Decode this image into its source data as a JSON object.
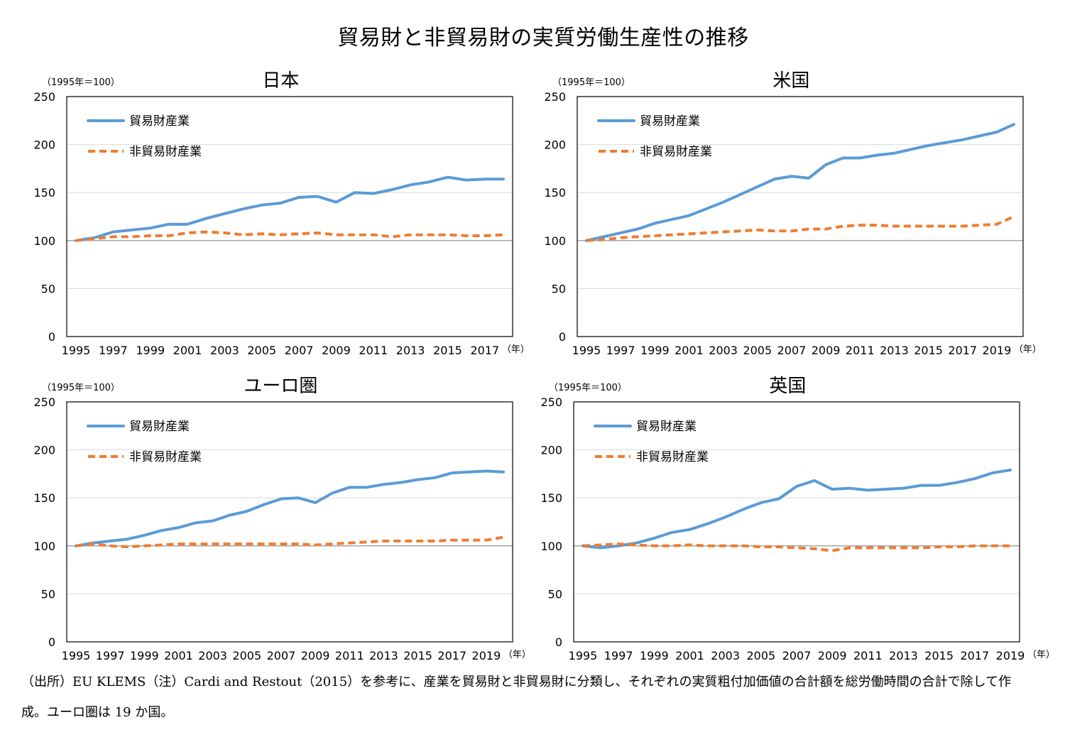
{
  "title": "貿易財と非貿易財の実質労働生産性の推移",
  "notes": {
    "line1": "（出所）EU KLEMS（注）Cardi and Restout（2015）を参考に、産業を貿易財と非貿易財に分類し、それぞれの実質粗付加価値の合計額を総労働時間の合計で除して作",
    "line2": "成。ユーロ圏は 19 か国。"
  },
  "colors": {
    "traded": "#5B9BD5",
    "nontraded": "#ED7D31",
    "frame": "#000000",
    "grid": "#D9D9D9",
    "baseline": "#A6A6A6"
  },
  "chart_data": [
    {
      "type": "line",
      "title": "日本",
      "unit_label": "（1995年＝100）",
      "x_unit_label": "（年）",
      "ylim": [
        0,
        250
      ],
      "yticks": [
        0,
        50,
        100,
        150,
        200,
        250
      ],
      "xlim": [
        1995,
        2018
      ],
      "xticks": [
        "1995",
        "1997",
        "1999",
        "2001",
        "2003",
        "2005",
        "2007",
        "2009",
        "2011",
        "2013",
        "2015",
        "2017"
      ],
      "grid": true,
      "legend": "top-left",
      "x": [
        1995,
        1996,
        1997,
        1998,
        1999,
        2000,
        2001,
        2002,
        2003,
        2004,
        2005,
        2006,
        2007,
        2008,
        2009,
        2010,
        2011,
        2012,
        2013,
        2014,
        2015,
        2016,
        2017,
        2018
      ],
      "series": [
        {
          "name": "貿易財産業",
          "style": "solid",
          "values": [
            100,
            103,
            109,
            111,
            113,
            117,
            117,
            123,
            128,
            133,
            137,
            139,
            145,
            146,
            140,
            150,
            149,
            153,
            158,
            161,
            166,
            163,
            164,
            164
          ]
        },
        {
          "name": "非貿易財産業",
          "style": "dashed",
          "values": [
            100,
            102,
            104,
            104,
            105,
            105,
            108,
            109,
            108,
            106,
            107,
            106,
            107,
            108,
            106,
            106,
            106,
            104,
            106,
            106,
            106,
            105,
            105,
            106
          ]
        }
      ]
    },
    {
      "type": "line",
      "title": "米国",
      "unit_label": "（1995年＝100）",
      "x_unit_label": "（年）",
      "ylim": [
        0,
        250
      ],
      "yticks": [
        0,
        50,
        100,
        150,
        200,
        250
      ],
      "xlim": [
        1995,
        2020
      ],
      "xticks": [
        "1995",
        "1997",
        "1999",
        "2001",
        "2003",
        "2005",
        "2007",
        "2009",
        "2011",
        "2013",
        "2015",
        "2017",
        "2019"
      ],
      "grid": true,
      "legend": "top-left",
      "x": [
        1995,
        1996,
        1997,
        1998,
        1999,
        2000,
        2001,
        2002,
        2003,
        2004,
        2005,
        2006,
        2007,
        2008,
        2009,
        2010,
        2011,
        2012,
        2013,
        2014,
        2015,
        2016,
        2017,
        2018,
        2019,
        2020
      ],
      "series": [
        {
          "name": "貿易財産業",
          "style": "solid",
          "values": [
            100,
            104,
            108,
            112,
            118,
            122,
            126,
            133,
            140,
            148,
            156,
            164,
            167,
            165,
            179,
            186,
            186,
            189,
            191,
            195,
            199,
            202,
            205,
            209,
            213,
            221
          ]
        },
        {
          "name": "非貿易財産業",
          "style": "dashed",
          "values": [
            100,
            101,
            103,
            104,
            105,
            106,
            107,
            108,
            109,
            110,
            111,
            110,
            110,
            112,
            112,
            115,
            116,
            116,
            115,
            115,
            115,
            115,
            115,
            116,
            117,
            125
          ]
        }
      ]
    },
    {
      "type": "line",
      "title": "ユーロ圏",
      "unit_label": "（1995年＝100）",
      "x_unit_label": "（年）",
      "ylim": [
        0,
        250
      ],
      "yticks": [
        0,
        50,
        100,
        150,
        200,
        250
      ],
      "xlim": [
        1995,
        2020
      ],
      "xticks": [
        "1995",
        "1997",
        "1999",
        "2001",
        "2003",
        "2005",
        "2007",
        "2009",
        "2011",
        "2013",
        "2015",
        "2017",
        "2019"
      ],
      "grid": true,
      "legend": "top-left",
      "x": [
        1995,
        1996,
        1997,
        1998,
        1999,
        2000,
        2001,
        2002,
        2003,
        2004,
        2005,
        2006,
        2007,
        2008,
        2009,
        2010,
        2011,
        2012,
        2013,
        2014,
        2015,
        2016,
        2017,
        2018,
        2019,
        2020
      ],
      "series": [
        {
          "name": "貿易財産業",
          "style": "solid",
          "values": [
            100,
            103,
            105,
            107,
            111,
            116,
            119,
            124,
            126,
            132,
            136,
            143,
            149,
            150,
            145,
            155,
            161,
            161,
            164,
            166,
            169,
            171,
            176,
            177,
            178,
            177
          ]
        },
        {
          "name": "非貿易財産業",
          "style": "dashed",
          "values": [
            100,
            102,
            100,
            99,
            100,
            101,
            102,
            102,
            102,
            102,
            102,
            102,
            102,
            102,
            101,
            102,
            103,
            104,
            105,
            105,
            105,
            105,
            106,
            106,
            106,
            109
          ]
        }
      ]
    },
    {
      "type": "line",
      "title": "英国",
      "unit_label": "（1995年＝100）",
      "x_unit_label": "（年）",
      "ylim": [
        0,
        250
      ],
      "yticks": [
        0,
        50,
        100,
        150,
        200,
        250
      ],
      "xlim": [
        1995,
        2019
      ],
      "xticks": [
        "1995",
        "1997",
        "1999",
        "2001",
        "2003",
        "2005",
        "2007",
        "2009",
        "2011",
        "2013",
        "2015",
        "2017",
        "2019"
      ],
      "grid": true,
      "legend": "top-left",
      "x": [
        1995,
        1996,
        1997,
        1998,
        1999,
        2000,
        2001,
        2002,
        2003,
        2004,
        2005,
        2006,
        2007,
        2008,
        2009,
        2010,
        2011,
        2012,
        2013,
        2014,
        2015,
        2016,
        2017,
        2018,
        2019
      ],
      "series": [
        {
          "name": "貿易財産業",
          "style": "solid",
          "values": [
            100,
            98,
            100,
            103,
            108,
            114,
            117,
            123,
            130,
            138,
            145,
            149,
            162,
            168,
            159,
            160,
            158,
            159,
            160,
            163,
            163,
            166,
            170,
            176,
            179
          ]
        },
        {
          "name": "非貿易財産業",
          "style": "dashed",
          "values": [
            100,
            101,
            102,
            101,
            100,
            100,
            101,
            100,
            100,
            100,
            99,
            99,
            98,
            97,
            95,
            98,
            98,
            98,
            98,
            98,
            99,
            99,
            100,
            100,
            100
          ]
        }
      ]
    }
  ]
}
